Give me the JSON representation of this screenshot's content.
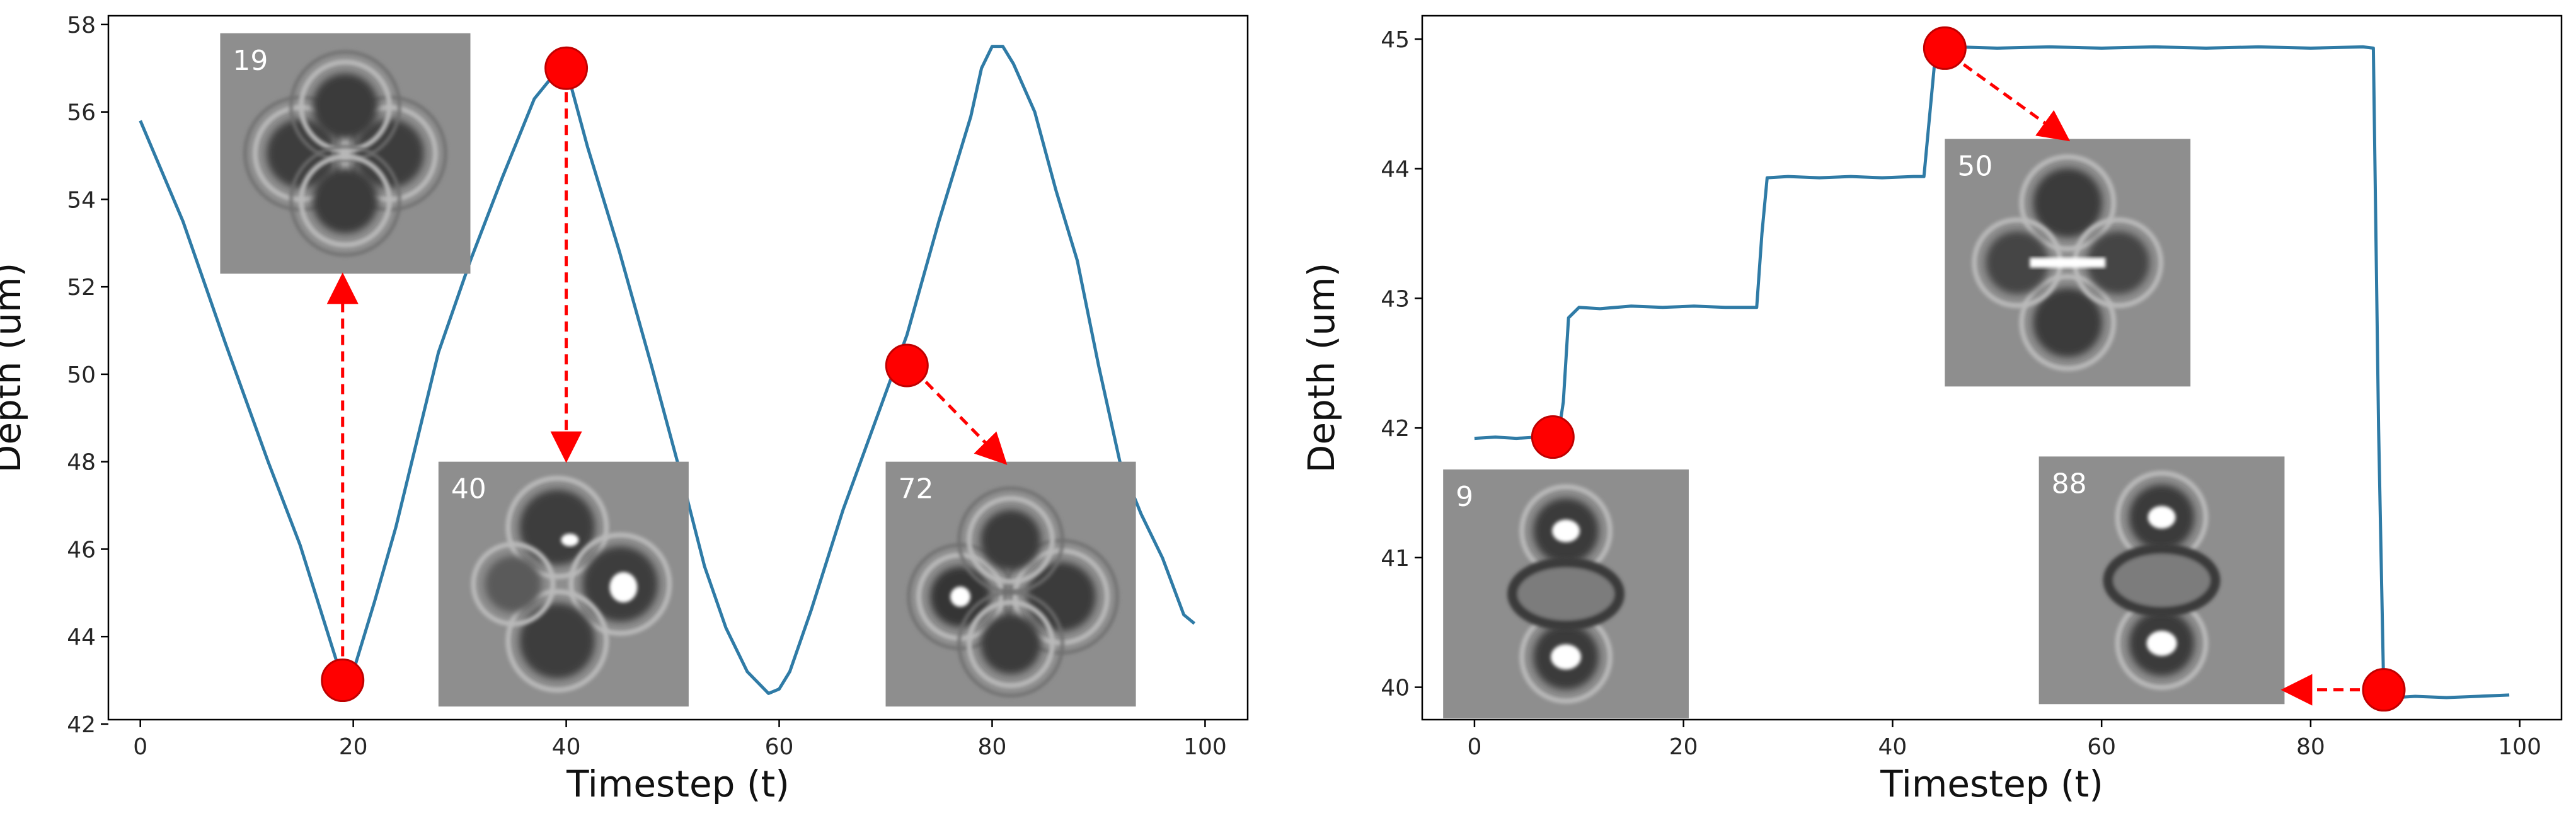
{
  "chart_data": [
    {
      "type": "line",
      "xlabel": "Timestep (t)",
      "ylabel": "Depth (um)",
      "xlim": [
        -3,
        104
      ],
      "ylim": [
        42.1,
        58.2
      ],
      "xticks": [
        "0",
        "20",
        "40",
        "60",
        "80",
        "100"
      ],
      "yticks": [
        "42",
        "44",
        "46",
        "48",
        "50",
        "52",
        "54",
        "56",
        "58"
      ],
      "series": [
        {
          "color": "#2f7ba6",
          "x": [
            0,
            4,
            8,
            12,
            15,
            19,
            20,
            22,
            24,
            26,
            28,
            31,
            34,
            37,
            39,
            40,
            42,
            45,
            48,
            51,
            53,
            55,
            57,
            59,
            60,
            61,
            63,
            66,
            69,
            72,
            75,
            78,
            79,
            80,
            81,
            82,
            84,
            86,
            88,
            90,
            92,
            94,
            96,
            98,
            99
          ],
          "y": [
            55.8,
            53.5,
            50.7,
            48.0,
            46.1,
            43.0,
            43.2,
            44.8,
            46.5,
            48.5,
            50.5,
            52.6,
            54.5,
            56.3,
            56.9,
            57.0,
            55.2,
            52.8,
            50.2,
            47.5,
            45.6,
            44.2,
            43.2,
            42.7,
            42.8,
            43.2,
            44.6,
            46.9,
            48.9,
            50.9,
            53.5,
            55.9,
            57.0,
            57.5,
            57.5,
            57.1,
            56.0,
            54.2,
            52.6,
            50.2,
            48.0,
            46.8,
            45.8,
            44.5,
            44.3
          ]
        }
      ],
      "markers": [
        {
          "x": 19,
          "y": 43.0
        },
        {
          "x": 40,
          "y": 57.0
        },
        {
          "x": 72,
          "y": 50.2
        }
      ],
      "insets": [
        {
          "label": "19",
          "x0": 7.5,
          "x1": 31,
          "y_top": 57.8,
          "y_bottom": 52.3,
          "kind": "four-lobe"
        },
        {
          "label": "40",
          "x0": 28,
          "x1": 51.5,
          "y_top": 48.0,
          "y_bottom": 42.4,
          "kind": "three-lobe"
        },
        {
          "label": "72",
          "x0": 70,
          "x1": 93.5,
          "y_top": 48.0,
          "y_bottom": 42.4,
          "kind": "four-lobe-sharp"
        }
      ]
    },
    {
      "type": "line",
      "xlabel": "Timestep (t)",
      "ylabel": "Depth (um)",
      "xlim": [
        -5,
        104
      ],
      "ylim": [
        39.75,
        45.18
      ],
      "xticks": [
        "0",
        "20",
        "40",
        "60",
        "80",
        "100"
      ],
      "yticks": [
        "40",
        "41",
        "42",
        "43",
        "44",
        "45"
      ],
      "series": [
        {
          "color": "#2f7ba6",
          "x": [
            0,
            2,
            4,
            6,
            7,
            8,
            8.5,
            9,
            10,
            12,
            15,
            18,
            21,
            24,
            27,
            27.5,
            28,
            30,
            33,
            36,
            39,
            42,
            43,
            44,
            45,
            46,
            50,
            55,
            60,
            65,
            70,
            75,
            80,
            85,
            86,
            86.5,
            87,
            88,
            90,
            93,
            96,
            99
          ],
          "y": [
            41.92,
            41.93,
            41.92,
            41.93,
            41.92,
            41.93,
            42.2,
            42.85,
            42.93,
            42.92,
            42.94,
            42.93,
            42.94,
            42.93,
            42.93,
            43.5,
            43.93,
            43.94,
            43.93,
            43.94,
            43.93,
            43.94,
            43.94,
            44.8,
            44.93,
            44.94,
            44.93,
            44.94,
            44.93,
            44.94,
            44.93,
            44.94,
            44.93,
            44.94,
            44.93,
            42.0,
            39.94,
            39.92,
            39.93,
            39.92,
            39.93,
            39.94
          ]
        }
      ],
      "markers": [
        {
          "x": 7.5,
          "y": 41.93
        },
        {
          "x": 45,
          "y": 44.93
        },
        {
          "x": 87,
          "y": 39.98
        }
      ],
      "insets": [
        {
          "label": "9",
          "x0": -3,
          "x1": 20.5,
          "y_top": 41.68,
          "y_bottom": 39.76,
          "kind": "cross-dumbbell"
        },
        {
          "label": "50",
          "x0": 45,
          "x1": 68.5,
          "y_top": 44.23,
          "y_bottom": 42.32,
          "kind": "cross-bright"
        },
        {
          "label": "88",
          "x0": 54,
          "x1": 77.5,
          "y_top": 41.78,
          "y_bottom": 39.87,
          "kind": "cross-dumbbell"
        }
      ]
    }
  ]
}
